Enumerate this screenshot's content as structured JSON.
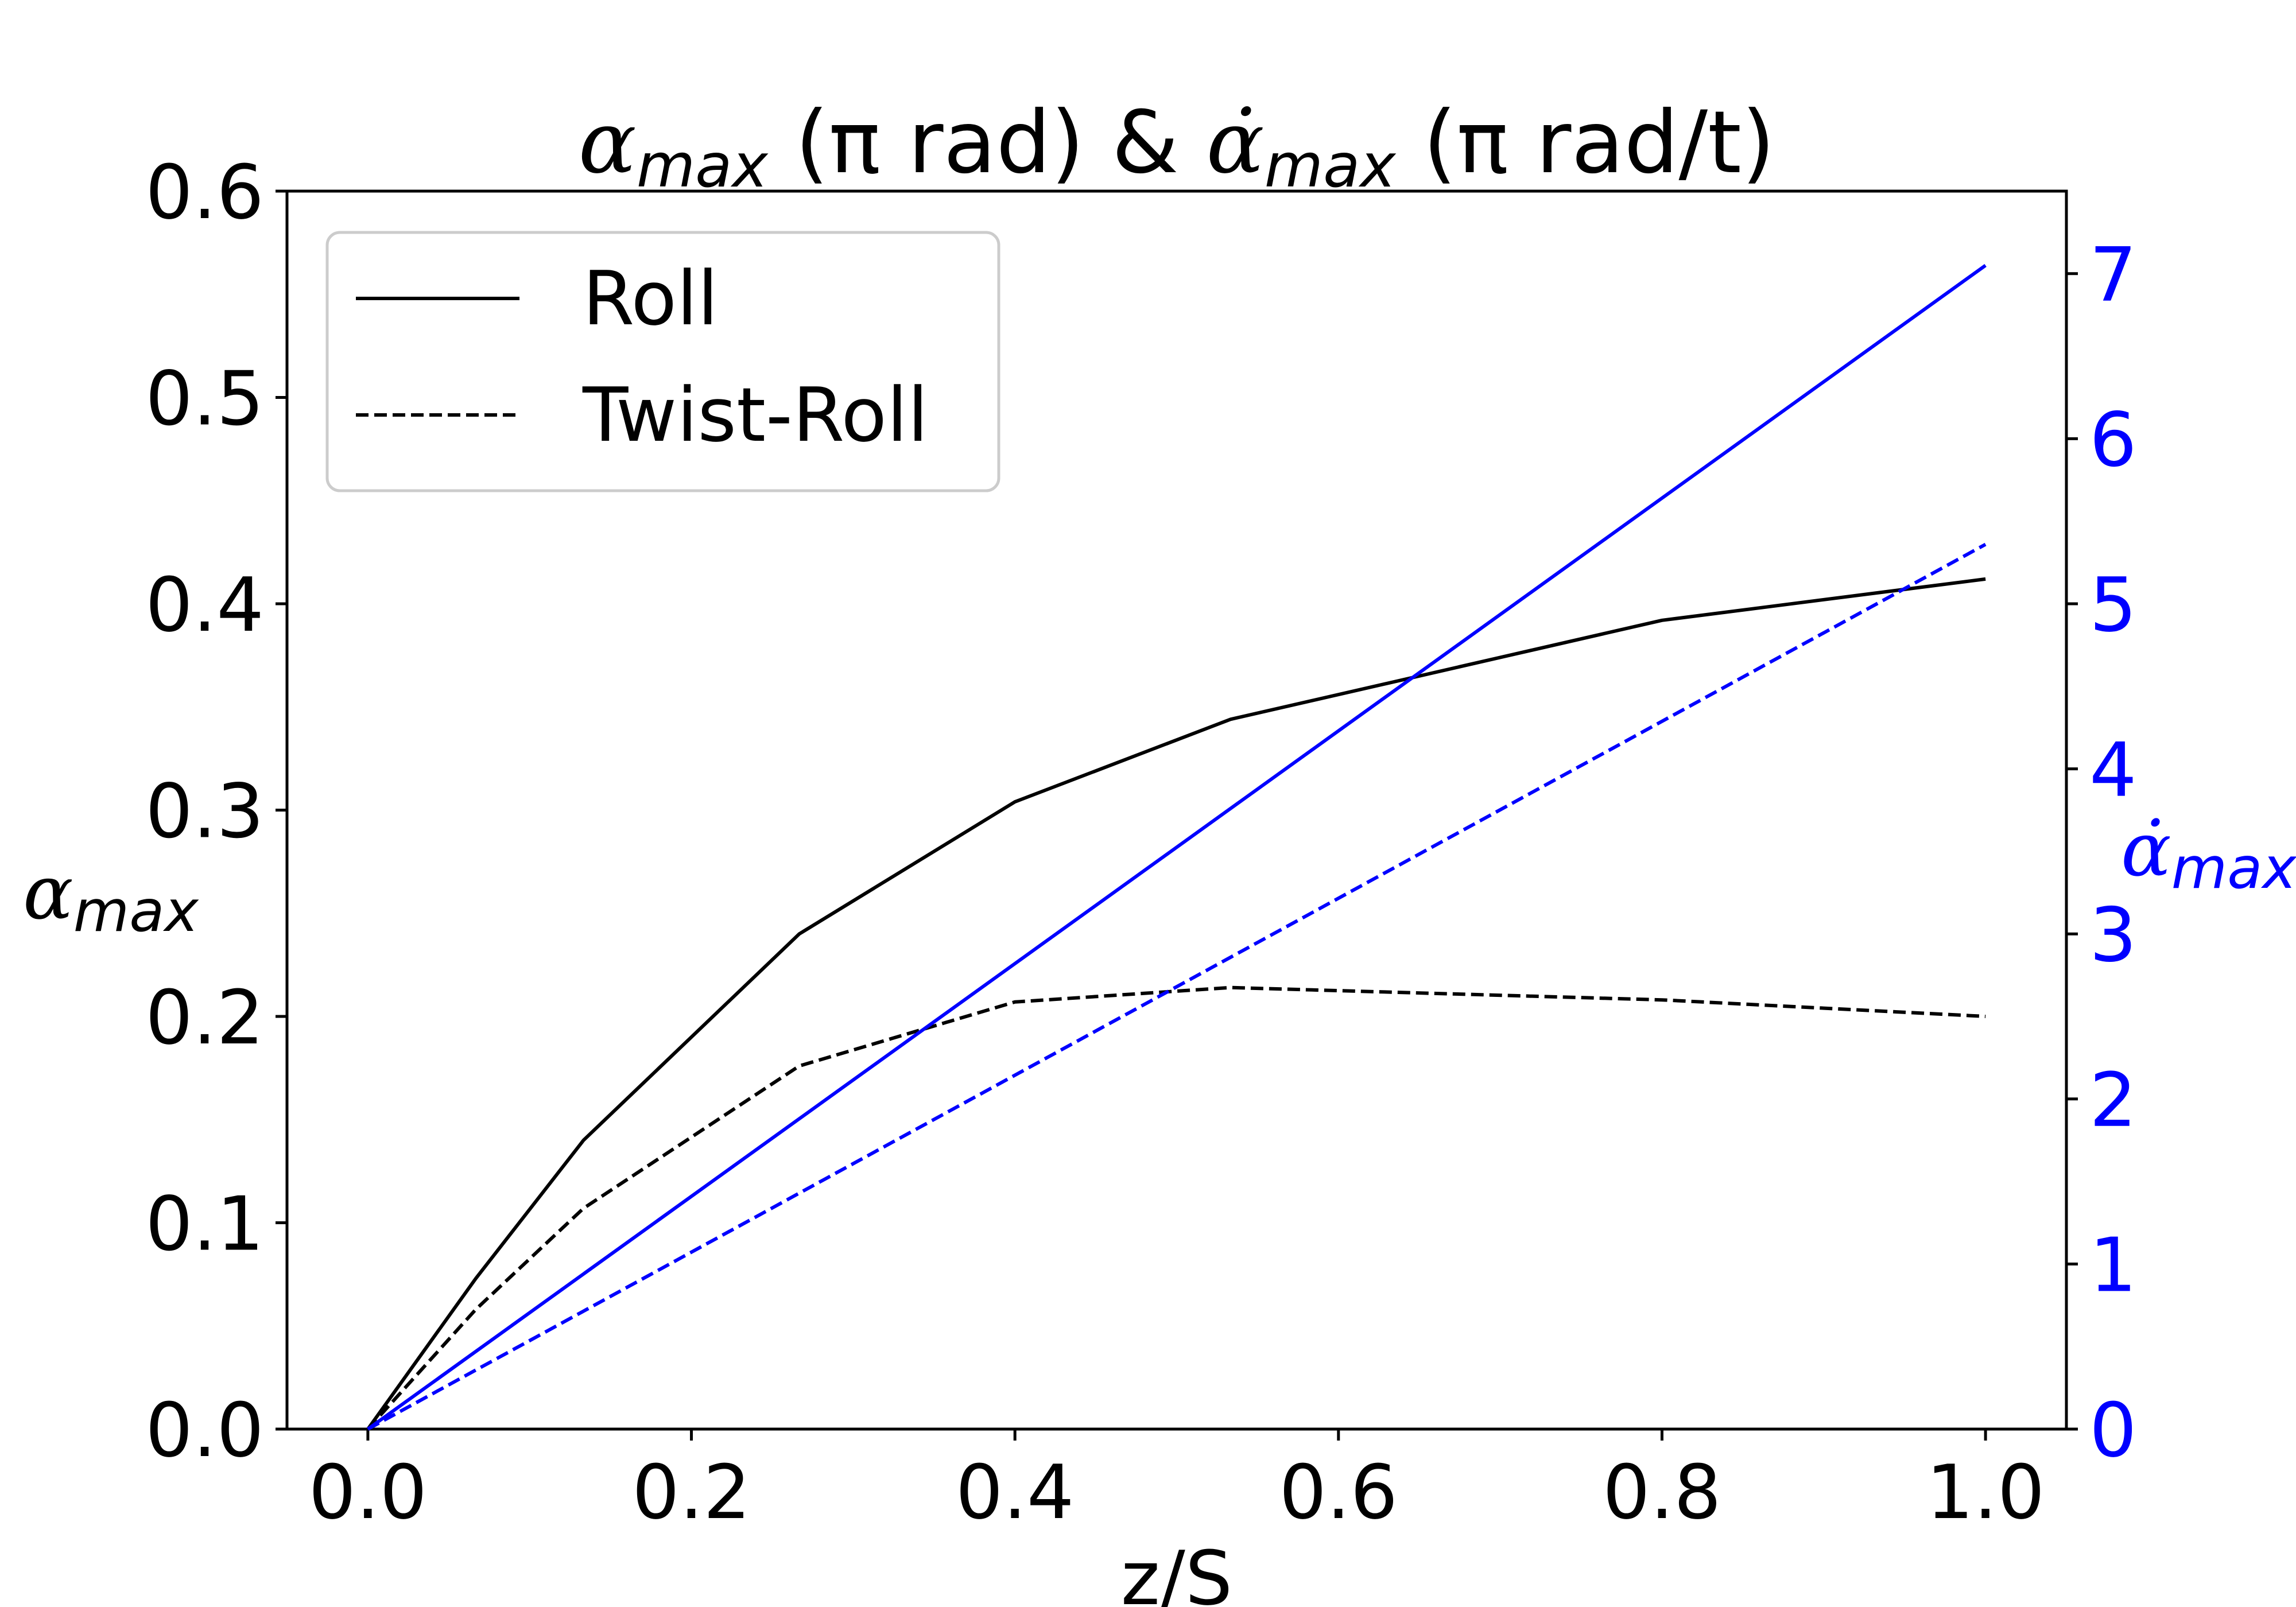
{
  "chart_data": {
    "type": "line",
    "title": {
      "part1_symbol": "α",
      "part1_sub": "max",
      "part1_rest": " (π rad) & ",
      "part2_symbol": "α̇",
      "part2_sub": "max",
      "part2_rest": " (π rad/t)"
    },
    "xlabel": "z/S",
    "ylabel_left": {
      "symbol": "α",
      "sub": "max"
    },
    "ylabel_right": {
      "symbol": "α̇",
      "sub": "max"
    },
    "xlim": [
      -0.05,
      1.05
    ],
    "ylim_left": [
      0.0,
      0.6
    ],
    "ylim_right": [
      0,
      7.5
    ],
    "x_ticks": [
      "0.0",
      "0.2",
      "0.4",
      "0.6",
      "0.8",
      "1.0"
    ],
    "x_tick_values": [
      0.0,
      0.2,
      0.4,
      0.6,
      0.8,
      1.0
    ],
    "y_left_ticks": [
      "0.0",
      "0.1",
      "0.2",
      "0.3",
      "0.4",
      "0.5",
      "0.6"
    ],
    "y_left_tick_values": [
      0.0,
      0.1,
      0.2,
      0.3,
      0.4,
      0.5,
      0.6
    ],
    "y_right_ticks": [
      "0",
      "1",
      "2",
      "3",
      "4",
      "5",
      "6",
      "7"
    ],
    "y_right_tick_values": [
      0,
      1,
      2,
      3,
      4,
      5,
      6,
      7
    ],
    "grid": false,
    "legend_position": "top-left",
    "legend": [
      {
        "label": "Roll",
        "style": "solid"
      },
      {
        "label": "Twist-Roll",
        "style": "dashed"
      }
    ],
    "colors": {
      "left_axis": "#000000",
      "right_axis": "#0000ff"
    },
    "series": [
      {
        "axis": "left",
        "style": "solid",
        "color": "#000000",
        "x": [
          0.0,
          0.0667,
          0.1333,
          0.2667,
          0.4,
          0.5333,
          0.8,
          1.0
        ],
        "y": [
          0.0,
          0.073,
          0.14,
          0.24,
          0.304,
          0.344,
          0.392,
          0.412
        ]
      },
      {
        "axis": "left",
        "style": "dashed",
        "color": "#000000",
        "x": [
          0.0,
          0.0667,
          0.1333,
          0.2667,
          0.4,
          0.5333,
          0.8,
          1.0
        ],
        "y": [
          0.0,
          0.058,
          0.107,
          0.176,
          0.207,
          0.214,
          0.208,
          0.2
        ]
      },
      {
        "axis": "right",
        "style": "solid",
        "color": "#0000ff",
        "x": [
          0.0,
          1.0
        ],
        "y": [
          0.0,
          7.05
        ]
      },
      {
        "axis": "right",
        "style": "dashed",
        "color": "#0000ff",
        "x": [
          0.0,
          1.0
        ],
        "y": [
          0.0,
          5.36
        ]
      }
    ]
  }
}
